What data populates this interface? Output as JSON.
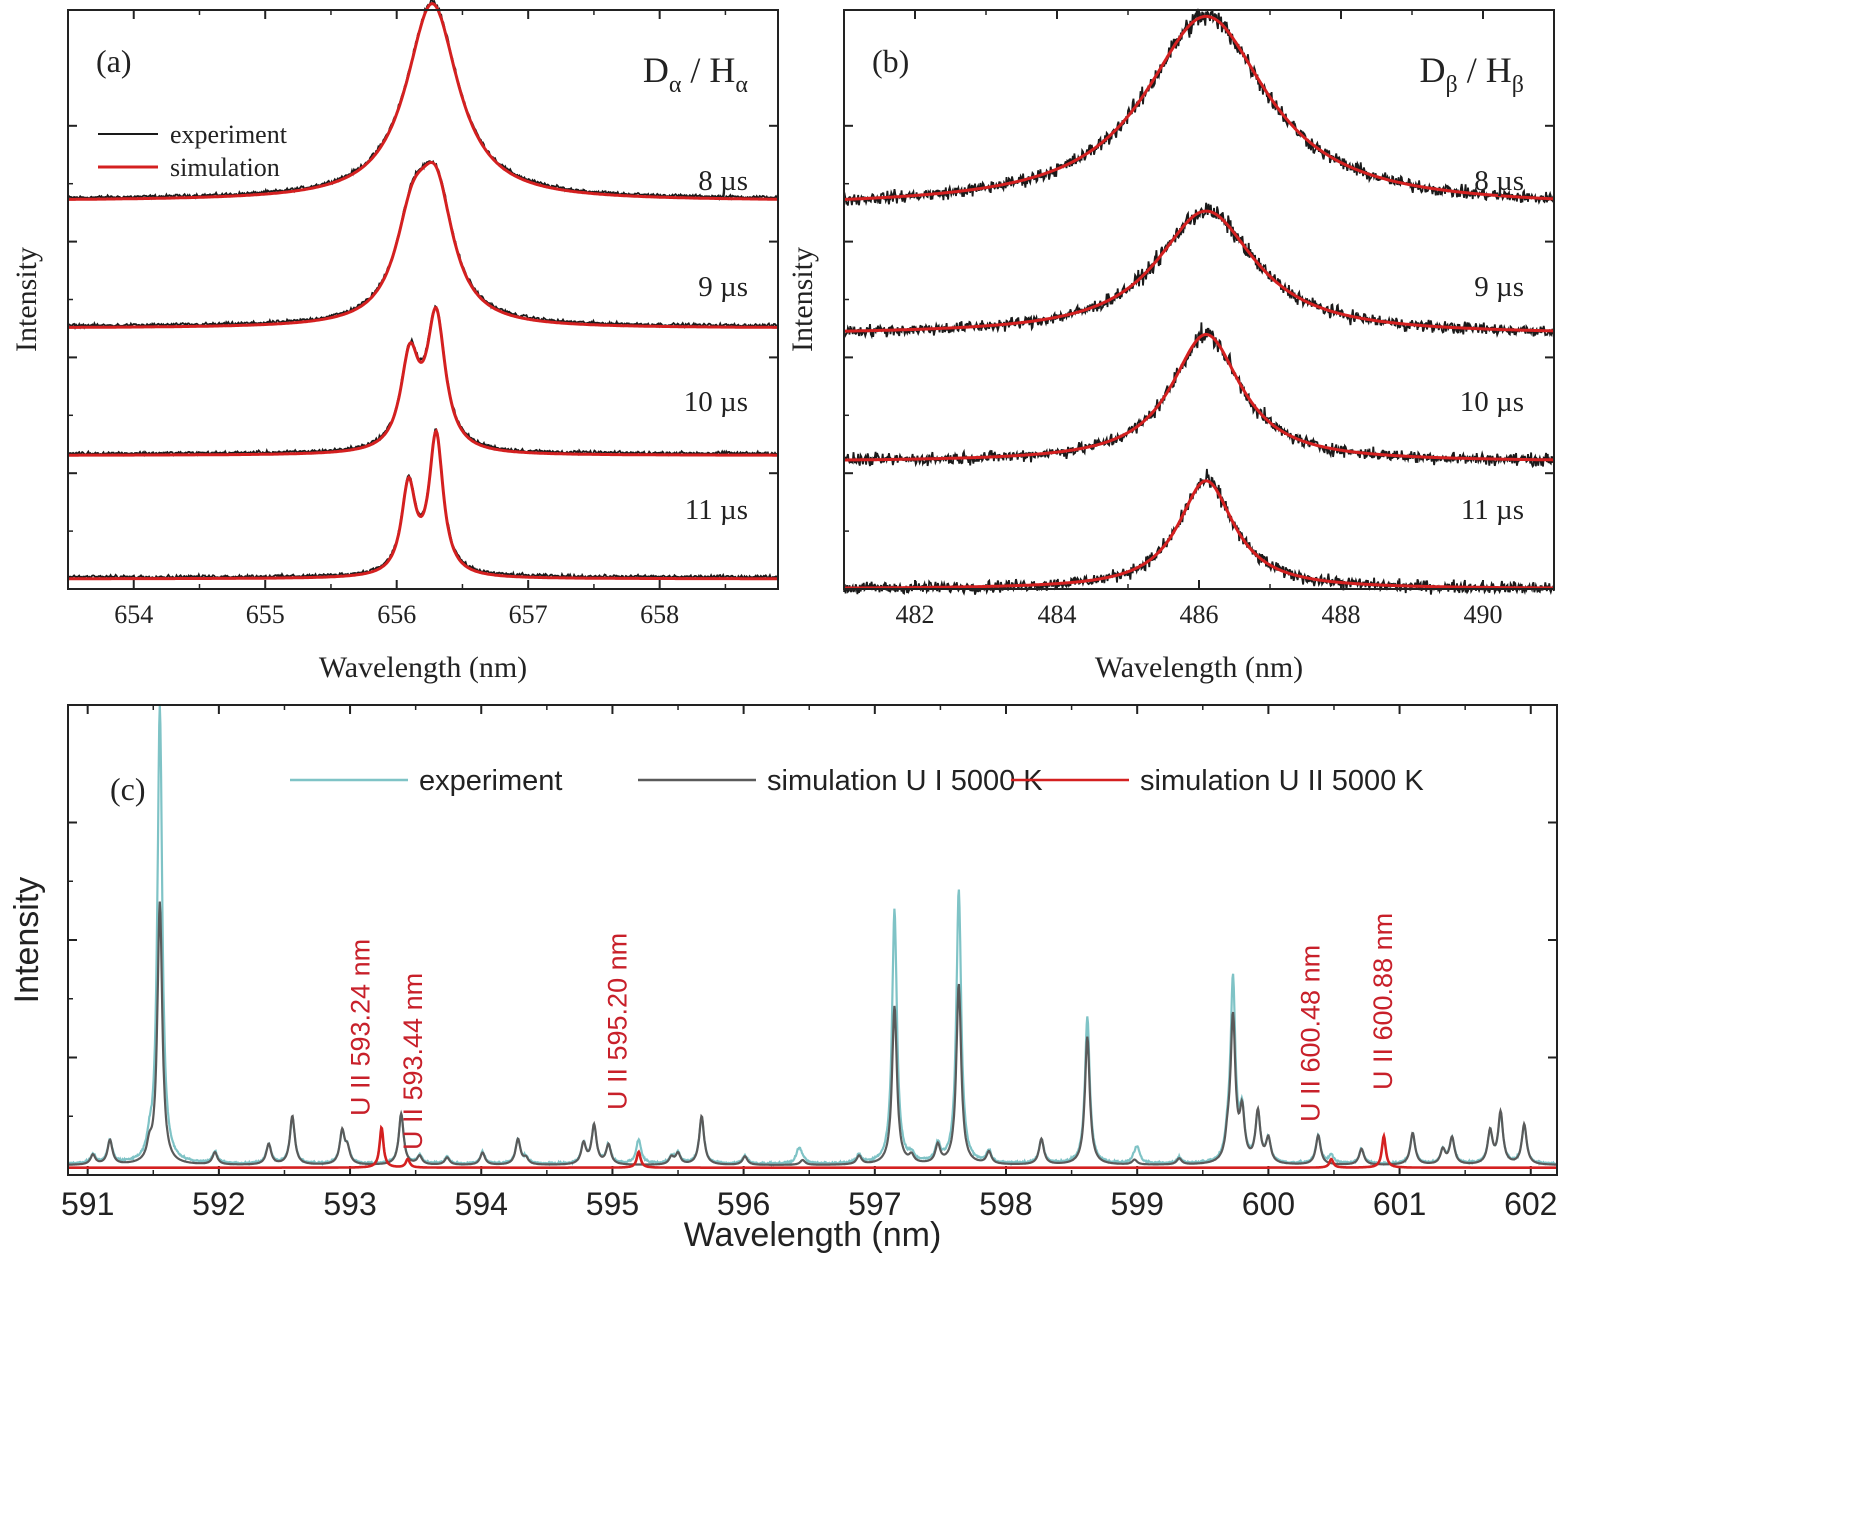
{
  "chart_data": [
    {
      "id": "a",
      "type": "line",
      "panel_label": "(a)",
      "line_label": {
        "main1": "D",
        "sub1": "α",
        "sep": " / ",
        "main2": "H",
        "sub2": "α"
      },
      "xlabel": "Wavelength (nm)",
      "ylabel": "Intensity",
      "xlim": [
        653.5,
        658.9
      ],
      "xticks": [
        654,
        655,
        656,
        657,
        658
      ],
      "ylim": [
        0,
        4.55
      ],
      "legend": {
        "position": "top-left",
        "entries": [
          {
            "name": "experiment",
            "color": "#1a1a1a"
          },
          {
            "name": "simulation",
            "color": "#d42020"
          }
        ]
      },
      "series": [
        {
          "name": "8 µs",
          "offset": 3.05,
          "peaks": [
            {
              "center": 656.27,
              "amp": 1.55,
              "gamma": 0.24
            }
          ]
        },
        {
          "name": "9 µs",
          "offset": 2.05,
          "peaks": [
            {
              "center": 656.12,
              "amp": 0.72,
              "gamma": 0.16
            },
            {
              "center": 656.3,
              "amp": 0.95,
              "gamma": 0.16
            }
          ]
        },
        {
          "name": "10 µs",
          "offset": 1.05,
          "peaks": [
            {
              "center": 656.1,
              "amp": 0.72,
              "gamma": 0.085
            },
            {
              "center": 656.3,
              "amp": 1.05,
              "gamma": 0.085
            }
          ]
        },
        {
          "name": "11 µs",
          "offset": 0.08,
          "peaks": [
            {
              "center": 656.09,
              "amp": 0.7,
              "gamma": 0.065
            },
            {
              "center": 656.3,
              "amp": 1.1,
              "gamma": 0.065
            }
          ]
        }
      ]
    },
    {
      "id": "b",
      "type": "line",
      "panel_label": "(b)",
      "line_label": {
        "main1": "D",
        "sub1": "β",
        "sep": " / ",
        "main2": "H",
        "sub2": "β"
      },
      "xlabel": "Wavelength (nm)",
      "ylabel": "Intensity",
      "xlim": [
        481.0,
        491.0
      ],
      "xticks": [
        482,
        484,
        486,
        488,
        490
      ],
      "ylim": [
        0,
        4.55
      ],
      "series": [
        {
          "name": "8 µs",
          "offset": 3.0,
          "peaks": [
            {
              "center": 486.1,
              "amp": 1.5,
              "gamma": 1.05
            }
          ]
        },
        {
          "name": "9 µs",
          "offset": 2.0,
          "peaks": [
            {
              "center": 486.1,
              "amp": 0.97,
              "gamma": 0.85
            }
          ]
        },
        {
          "name": "10 µs",
          "offset": 1.0,
          "peaks": [
            {
              "center": 486.1,
              "amp": 1.0,
              "gamma": 0.6
            }
          ]
        },
        {
          "name": "11 µs",
          "offset": 0.0,
          "peaks": [
            {
              "center": 486.1,
              "amp": 0.85,
              "gamma": 0.48
            }
          ]
        }
      ]
    },
    {
      "id": "c",
      "type": "line",
      "panel_label": "(c)",
      "xlabel": "Wavelength (nm)",
      "ylabel": "Intensity",
      "xlim": [
        590.85,
        602.2
      ],
      "xticks": [
        591,
        592,
        593,
        594,
        595,
        596,
        597,
        598,
        599,
        600,
        601,
        602
      ],
      "ylim": [
        0,
        3.85
      ],
      "legend": {
        "position": "top",
        "entries": [
          {
            "name": "experiment",
            "color": "#7fc3c6"
          },
          {
            "name": "simulation U I 5000 K",
            "color": "#5a5a5a"
          },
          {
            "name": "simulation U II 5000 K",
            "color": "#d42020"
          }
        ]
      },
      "u1_lines": [
        {
          "x": 591.04,
          "h": 0.08
        },
        {
          "x": 591.17,
          "h": 0.2
        },
        {
          "x": 591.47,
          "h": 0.12
        },
        {
          "x": 591.55,
          "h": 2.15
        },
        {
          "x": 591.97,
          "h": 0.1
        },
        {
          "x": 592.38,
          "h": 0.17
        },
        {
          "x": 592.56,
          "h": 0.4
        },
        {
          "x": 592.94,
          "h": 0.27
        },
        {
          "x": 592.98,
          "h": 0.12
        },
        {
          "x": 593.39,
          "h": 0.42
        },
        {
          "x": 593.53,
          "h": 0.07
        },
        {
          "x": 593.74,
          "h": 0.06
        },
        {
          "x": 594.01,
          "h": 0.1
        },
        {
          "x": 594.28,
          "h": 0.21
        },
        {
          "x": 594.34,
          "h": 0.05
        },
        {
          "x": 594.78,
          "h": 0.17
        },
        {
          "x": 594.86,
          "h": 0.32
        },
        {
          "x": 594.97,
          "h": 0.16
        },
        {
          "x": 595.45,
          "h": 0.06
        },
        {
          "x": 595.5,
          "h": 0.09
        },
        {
          "x": 595.68,
          "h": 0.4
        },
        {
          "x": 596.01,
          "h": 0.07
        },
        {
          "x": 596.45,
          "h": 0.04
        },
        {
          "x": 596.88,
          "h": 0.07
        },
        {
          "x": 597.15,
          "h": 1.3
        },
        {
          "x": 597.28,
          "h": 0.06
        },
        {
          "x": 597.48,
          "h": 0.15
        },
        {
          "x": 597.64,
          "h": 1.48
        },
        {
          "x": 597.87,
          "h": 0.1
        },
        {
          "x": 598.27,
          "h": 0.21
        },
        {
          "x": 598.62,
          "h": 1.05
        },
        {
          "x": 598.98,
          "h": 0.04
        },
        {
          "x": 599.32,
          "h": 0.05
        },
        {
          "x": 599.69,
          "h": 0.15
        },
        {
          "x": 599.73,
          "h": 1.18
        },
        {
          "x": 599.8,
          "h": 0.4
        },
        {
          "x": 599.92,
          "h": 0.42
        },
        {
          "x": 600.0,
          "h": 0.2
        },
        {
          "x": 600.38,
          "h": 0.24
        },
        {
          "x": 600.71,
          "h": 0.13
        },
        {
          "x": 601.1,
          "h": 0.26
        },
        {
          "x": 601.33,
          "h": 0.12
        },
        {
          "x": 601.4,
          "h": 0.22
        },
        {
          "x": 601.69,
          "h": 0.27
        },
        {
          "x": 601.77,
          "h": 0.42
        },
        {
          "x": 601.95,
          "h": 0.33
        }
      ],
      "exp_lines": [
        {
          "x": 591.55,
          "h": 3.75
        },
        {
          "x": 597.15,
          "h": 2.08
        },
        {
          "x": 597.64,
          "h": 2.24
        },
        {
          "x": 598.62,
          "h": 1.2
        },
        {
          "x": 599.73,
          "h": 1.48
        },
        {
          "x": 595.2,
          "h": 0.2
        },
        {
          "x": 600.48,
          "h": 0.07
        },
        {
          "x": 596.42,
          "h": 0.12
        },
        {
          "x": 599.0,
          "h": 0.12
        }
      ],
      "u2_lines": [
        {
          "x": 593.24,
          "h": 0.33
        },
        {
          "x": 593.44,
          "h": 0.07
        },
        {
          "x": 595.2,
          "h": 0.13
        },
        {
          "x": 600.48,
          "h": 0.07
        },
        {
          "x": 600.88,
          "h": 0.26
        }
      ],
      "annotations": [
        {
          "x": 593.24,
          "text": "U II 593.24 nm"
        },
        {
          "x": 593.44,
          "text": "U II 593.44 nm"
        },
        {
          "x": 595.2,
          "text": "U II 595.20 nm"
        },
        {
          "x": 600.48,
          "text": "U II 600.48 nm"
        },
        {
          "x": 600.88,
          "text": "U II 600.88 nm"
        }
      ]
    }
  ],
  "colors": {
    "experiment_black": "#1a1a1a",
    "simulation_red": "#d42020",
    "experiment_cyan": "#7fc3c6",
    "sim_gray": "#5a5a5a",
    "annotation_red": "#c8202a"
  }
}
